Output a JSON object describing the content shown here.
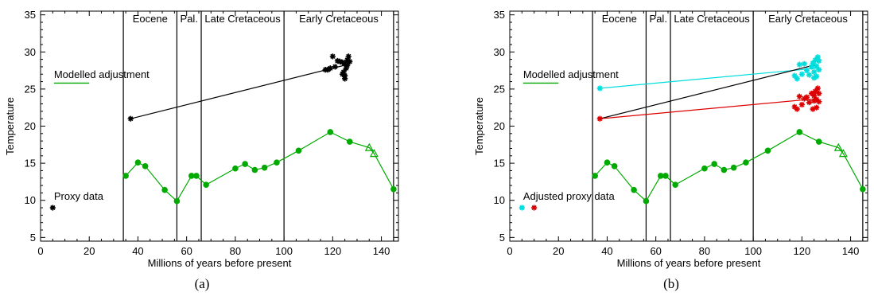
{
  "panels": [
    {
      "caption": "(a)",
      "chart_data": {
        "type": "scatter",
        "title": "",
        "xlabel": "Millions of years before present",
        "ylabel": "Temperature",
        "xlim": [
          0,
          147
        ],
        "ylim": [
          4.5,
          35.5
        ],
        "x_ticks": [
          0,
          20,
          40,
          60,
          80,
          100,
          120,
          140
        ],
        "y_ticks": [
          5,
          10,
          15,
          20,
          25,
          30,
          35
        ],
        "grid": false,
        "period_boundaries": [
          34,
          56,
          66,
          100,
          145
        ],
        "period_labels": [
          {
            "label": "Eocene",
            "x": 45
          },
          {
            "label": "Pal.",
            "x": 61
          },
          {
            "label": "Late Cretaceous",
            "x": 83
          },
          {
            "label": "Early Cretaceous",
            "x": 122.5
          }
        ],
        "legend_labels": [
          {
            "label": "Modelled adjustment",
            "color": "#00aa00",
            "kind": "line"
          },
          {
            "label": "Proxy data",
            "color": "#000000",
            "kind": "star"
          }
        ],
        "legend_marks": [
          {
            "x": 5,
            "y": 9,
            "color": "#000000"
          }
        ],
        "model_series": {
          "color": "#00aa00",
          "points": [
            [
              35,
              13.3,
              "dot"
            ],
            [
              40,
              15.1,
              "dot"
            ],
            [
              43,
              14.6,
              "dot"
            ],
            [
              51,
              11.4,
              "dot"
            ],
            [
              56,
              9.9,
              "dot"
            ],
            [
              62,
              13.3,
              "dot"
            ],
            [
              64,
              13.3,
              "dot"
            ],
            [
              68,
              12.1,
              "dot"
            ],
            [
              80,
              14.3,
              "dot"
            ],
            [
              84,
              14.9,
              "dot"
            ],
            [
              88,
              14.1,
              "dot"
            ],
            [
              92,
              14.4,
              "dot"
            ],
            [
              97,
              15.1,
              "dot"
            ],
            [
              106,
              16.7,
              "dot"
            ],
            [
              119,
              19.2,
              "dot"
            ],
            [
              127,
              17.9,
              "dot"
            ],
            [
              135,
              17.1,
              "tri"
            ],
            [
              137,
              16.3,
              "tri"
            ],
            [
              145,
              11.5,
              "dot"
            ]
          ]
        },
        "proxy_lines": [
          {
            "color": "#000000",
            "from": [
              37,
              21.0
            ],
            "to": [
              126,
              28.3
            ]
          }
        ],
        "proxy_clusters": [
          {
            "color": "#000000",
            "points": [
              [
                37,
                21.0
              ],
              [
                117,
                27.6
              ],
              [
                118,
                27.6
              ],
              [
                119,
                27.8
              ],
              [
                120,
                29.4
              ],
              [
                121,
                28.0
              ],
              [
                122,
                28.8
              ],
              [
                123,
                28.7
              ],
              [
                124,
                28.6
              ],
              [
                124.5,
                27.3
              ],
              [
                125,
                26.8
              ],
              [
                125,
                26.4
              ],
              [
                125.5,
                27.8
              ],
              [
                126,
                28.9
              ],
              [
                126,
                28.2
              ],
              [
                126.5,
                29.4
              ],
              [
                127,
                28.7
              ],
              [
                125,
                28.4
              ],
              [
                124,
                27.0
              ]
            ]
          }
        ]
      }
    },
    {
      "caption": "(b)",
      "chart_data": {
        "type": "scatter",
        "title": "",
        "xlabel": "Millions of years before present",
        "ylabel": "Temperature",
        "xlim": [
          0,
          147
        ],
        "ylim": [
          4.5,
          35.5
        ],
        "x_ticks": [
          0,
          20,
          40,
          60,
          80,
          100,
          120,
          140
        ],
        "y_ticks": [
          5,
          10,
          15,
          20,
          25,
          30,
          35
        ],
        "grid": false,
        "period_boundaries": [
          34,
          56,
          66,
          100,
          145
        ],
        "period_labels": [
          {
            "label": "Eocene",
            "x": 45
          },
          {
            "label": "Pal.",
            "x": 61
          },
          {
            "label": "Late Cretaceous",
            "x": 83
          },
          {
            "label": "Early Cretaceous",
            "x": 122.5
          }
        ],
        "legend_labels": [
          {
            "label": "Modelled adjustment",
            "color": "#00aa00",
            "kind": "line"
          },
          {
            "label": "Adjusted proxy data",
            "color": "#000000",
            "kind": "star"
          }
        ],
        "legend_marks": [
          {
            "x": 5,
            "y": 9,
            "color": "#00dddd"
          },
          {
            "x": 10,
            "y": 9,
            "color": "#dd0000"
          }
        ],
        "model_series": {
          "color": "#00aa00",
          "points": [
            [
              35,
              13.3,
              "dot"
            ],
            [
              40,
              15.1,
              "dot"
            ],
            [
              43,
              14.6,
              "dot"
            ],
            [
              51,
              11.4,
              "dot"
            ],
            [
              56,
              9.9,
              "dot"
            ],
            [
              62,
              13.3,
              "dot"
            ],
            [
              64,
              13.3,
              "dot"
            ],
            [
              68,
              12.1,
              "dot"
            ],
            [
              80,
              14.3,
              "dot"
            ],
            [
              84,
              14.9,
              "dot"
            ],
            [
              88,
              14.1,
              "dot"
            ],
            [
              92,
              14.4,
              "dot"
            ],
            [
              97,
              15.1,
              "dot"
            ],
            [
              106,
              16.7,
              "dot"
            ],
            [
              119,
              19.2,
              "dot"
            ],
            [
              127,
              17.9,
              "dot"
            ],
            [
              135,
              17.1,
              "tri"
            ],
            [
              137,
              16.3,
              "tri"
            ],
            [
              145,
              11.5,
              "dot"
            ]
          ]
        },
        "proxy_lines": [
          {
            "color": "#00dddd",
            "from": [
              37,
              25.1
            ],
            "to": [
              126,
              27.8
            ]
          },
          {
            "color": "#000000",
            "from": [
              37,
              21.0
            ],
            "to": [
              126,
              28.3
            ]
          },
          {
            "color": "#dd0000",
            "from": [
              37,
              21.0
            ],
            "to": [
              126,
              23.7
            ]
          }
        ],
        "proxy_clusters": [
          {
            "color": "#00dddd",
            "points": [
              [
                37,
                25.1
              ],
              [
                117,
                26.8
              ],
              [
                118,
                26.4
              ],
              [
                119,
                28.3
              ],
              [
                120,
                27.0
              ],
              [
                121,
                28.4
              ],
              [
                122,
                27.5
              ],
              [
                123,
                26.9
              ],
              [
                124,
                28.0
              ],
              [
                124.5,
                28.5
              ],
              [
                125,
                27.3
              ],
              [
                125,
                26.5
              ],
              [
                125.5,
                28.9
              ],
              [
                126,
                28.1
              ],
              [
                126.5,
                29.3
              ],
              [
                127,
                28.8
              ],
              [
                127,
                27.6
              ],
              [
                126,
                26.7
              ]
            ]
          },
          {
            "color": "#dd0000",
            "points": [
              [
                37,
                21.0
              ],
              [
                117,
                22.6
              ],
              [
                118,
                22.3
              ],
              [
                119,
                24.0
              ],
              [
                120,
                22.9
              ],
              [
                121,
                23.7
              ],
              [
                122,
                23.9
              ],
              [
                123,
                23.2
              ],
              [
                124,
                24.4
              ],
              [
                124.5,
                22.3
              ],
              [
                125,
                23.4
              ],
              [
                125,
                24.1
              ],
              [
                125.5,
                24.7
              ],
              [
                126,
                23.6
              ],
              [
                126.5,
                25.1
              ],
              [
                127,
                24.4
              ],
              [
                127,
                23.3
              ],
              [
                126,
                22.5
              ]
            ]
          }
        ]
      }
    }
  ]
}
